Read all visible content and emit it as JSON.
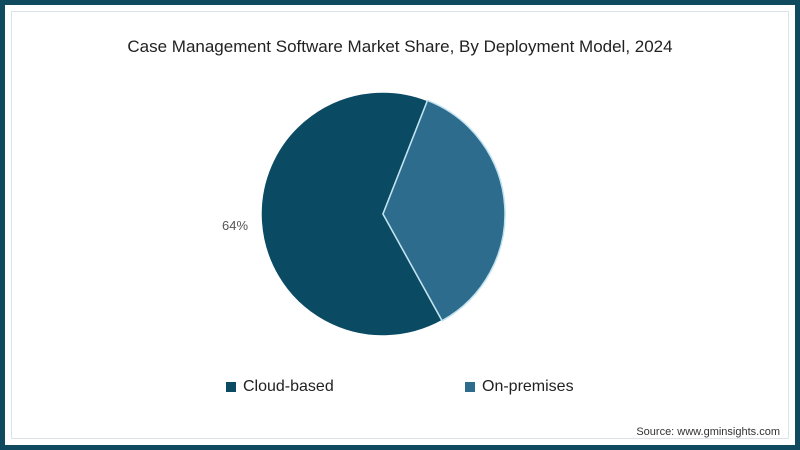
{
  "chart_data": {
    "type": "pie",
    "title": "Case Management Software Market Share, By Deployment Model, 2024",
    "categories": [
      "Cloud-based",
      "On-premises"
    ],
    "values": [
      64,
      36
    ],
    "colors": [
      "#0b4a63",
      "#2e6c8e"
    ],
    "data_labels": [
      "64%",
      ""
    ],
    "legend_position": "bottom",
    "source": "Source: www.gminsights.com"
  },
  "title": "Case Management Software Market Share, By Deployment Model, 2024",
  "labels": {
    "cloud_pct": "64%"
  },
  "legend": [
    {
      "label": "Cloud-based",
      "color": "#0b4a63"
    },
    {
      "label": "On-premises",
      "color": "#2e6c8e"
    }
  ],
  "source": "Source: www.gminsights.com",
  "frame_color": "#0f4a5e"
}
